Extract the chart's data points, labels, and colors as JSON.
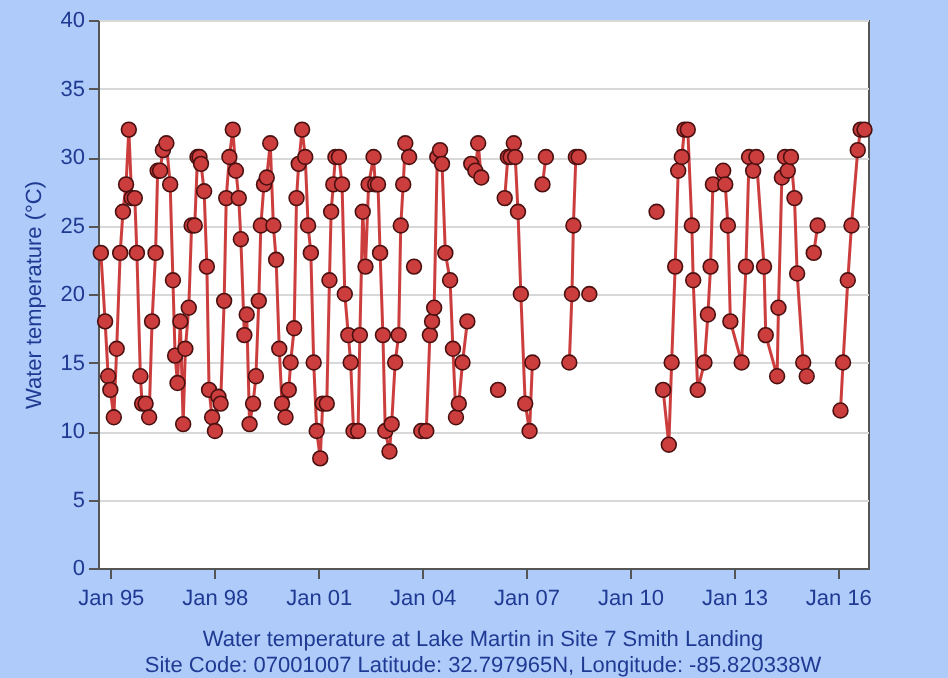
{
  "chart_data": {
    "type": "line",
    "title": "Water temperature at Lake Martin in Site 7 Smith Landing",
    "subtitle": "Site Code: 07001007 Latitude: 32.797965N, Longitude: -85.820338W",
    "ylabel": "Water temperature (°C)",
    "x": [
      "1994-09-23",
      "1994-11-07",
      "1994-12-09",
      "1995-01-01",
      "1995-02-07",
      "1995-03-09",
      "1995-04-15",
      "1995-05-14",
      "1995-06-16",
      "1995-07-15",
      "1995-08-14",
      "1995-09-16",
      "1995-10-08",
      "1995-11-14",
      "1995-12-02",
      "1996-01-08",
      "1996-02-14",
      "1996-03-16",
      "1996-04-22",
      "1996-05-14",
      "1996-06-09",
      "1996-07-08",
      "1996-08-14",
      "1996-09-23",
      "1996-10-22",
      "1996-11-14",
      "1996-12-09",
      "1997-01-08",
      "1997-02-07",
      "1997-03-02",
      "1997-04-07",
      "1997-05-07",
      "1997-06-09",
      "1997-07-08",
      "1997-07-29",
      "1997-08-14",
      "1997-09-16",
      "1997-10-15",
      "1997-11-07",
      "1997-12-09",
      "1998-01-08",
      "1998-02-14",
      "1998-03-09",
      "1998-04-15",
      "1998-05-07",
      "1998-06-09",
      "1998-07-15",
      "1998-08-17",
      "1998-09-16",
      "1998-10-08",
      "1998-11-14",
      "1998-12-09",
      "1999-01-08",
      "1999-02-14",
      "1999-03-16",
      "1999-04-15",
      "1999-05-07",
      "1999-06-09",
      "1999-07-08",
      "1999-08-14",
      "1999-09-16",
      "1999-10-15",
      "1999-11-17",
      "1999-12-16",
      "2000-01-22",
      "2000-02-25",
      "2000-03-16",
      "2000-04-22",
      "2000-05-17",
      "2000-06-09",
      "2000-07-15",
      "2000-08-17",
      "2000-09-16",
      "2000-10-15",
      "2000-11-14",
      "2000-12-16",
      "2001-01-22",
      "2001-02-17",
      "2001-04-01",
      "2001-04-29",
      "2001-05-17",
      "2001-06-09",
      "2001-07-01",
      "2001-08-07",
      "2001-09-09",
      "2001-10-08",
      "2001-11-14",
      "2001-12-09",
      "2002-01-08",
      "2002-02-25",
      "2002-03-16",
      "2002-04-15",
      "2002-05-14",
      "2002-06-16",
      "2002-08-07",
      "2002-08-25",
      "2002-09-23",
      "2002-10-15",
      "2002-11-14",
      "2002-12-09",
      "2003-01-22",
      "2003-02-14",
      "2003-03-23",
      "2003-04-29",
      "2003-05-21",
      "2003-06-16",
      "2003-07-08",
      "2003-08-17",
      "2003-09-13",
      "2003-10-08",
      "2003-11-14",
      "2003-12-23",
      "2004-02-14",
      "2004-03-23",
      "2004-04-15",
      "2004-05-07",
      "2004-06-09",
      "2004-07-08",
      "2004-07-29",
      "2004-09-02",
      "2004-10-22",
      "2004-11-21",
      "2004-12-23",
      "2005-01-22",
      "2005-03-02",
      "2005-04-22",
      "2005-05-10",
      "2005-06-02",
      "2005-07-15",
      "2005-08-14",
      "2005-09-16",
      "2005-11-24",
      "2006-03-12",
      "2006-04-18",
      "2006-05-21",
      "2006-06-23",
      "2006-07-22",
      "2006-08-25",
      "2006-09-09",
      "2006-10-08",
      "2006-11-07",
      "2006-12-23",
      "2007-02-07",
      "2007-03-09",
      "2007-04-18",
      "2007-06-23",
      "2007-07-29",
      "2007-11-24",
      "2008-04-01",
      "2008-04-29",
      "2008-05-14",
      "2008-06-09",
      "2008-07-08",
      "2008-09-13",
      "2008-10-29",
      "2009-10-19",
      "2010-10-08",
      "2010-11-24",
      "2010-12-16",
      "2011-02-14",
      "2011-03-16",
      "2011-04-22",
      "2011-05-24",
      "2011-07-01",
      "2011-07-29",
      "2011-09-02",
      "2011-10-15",
      "2011-10-29",
      "2011-12-16",
      "2012-02-25",
      "2012-04-01",
      "2012-04-29",
      "2012-05-24",
      "2012-09-09",
      "2012-10-01",
      "2012-10-29",
      "2012-11-24",
      "2013-03-23",
      "2013-05-07",
      "2013-06-09",
      "2013-07-22",
      "2013-08-25",
      "2013-11-14",
      "2013-12-02",
      "2014-04-01",
      "2014-04-15",
      "2014-05-21",
      "2014-06-23",
      "2014-07-22",
      "2014-08-25",
      "2014-10-01",
      "2014-10-29",
      "2015-01-01",
      "2015-02-07",
      "2015-03-13",
      "2015-04-22",
      "2015-06-02",
      "2015-09-13",
      "2016-01-29",
      "2016-02-25",
      "2016-04-15",
      "2016-05-24",
      "2016-07-29",
      "2016-08-28",
      "2016-10-08"
    ],
    "series": [
      {
        "color": "#cc3d3d",
        "values": [
          23,
          18,
          14,
          13,
          11,
          16,
          23,
          26,
          28,
          32,
          27,
          27,
          23,
          14,
          12,
          12,
          11,
          18,
          23,
          29,
          29,
          30.5,
          31,
          28,
          21,
          15.5,
          13.5,
          18,
          10.5,
          16,
          19,
          25,
          25,
          30,
          30,
          29.5,
          27.5,
          22,
          13,
          11,
          10,
          12.5,
          12,
          19.5,
          27,
          30,
          32,
          29,
          27,
          24,
          17,
          18.5,
          10.5,
          12,
          14,
          19.5,
          25,
          28,
          28.5,
          31,
          25,
          22.5,
          16,
          12,
          11,
          13,
          15,
          17.5,
          27,
          29.5,
          32,
          30,
          25,
          23,
          15,
          10,
          8,
          12,
          12,
          21,
          26,
          28,
          30,
          30,
          28,
          20,
          17,
          15,
          10,
          10,
          17,
          26,
          22,
          28,
          30,
          28,
          28,
          23,
          17,
          10,
          8.5,
          10.5,
          15,
          17,
          25,
          28,
          31,
          30,
          null,
          22,
          null,
          10,
          10,
          17,
          18,
          19,
          30,
          30.5,
          29.5,
          23,
          21,
          16,
          11,
          12,
          15,
          18,
          null,
          29.5,
          29,
          31,
          28.5,
          null,
          13,
          null,
          27,
          30,
          30,
          31,
          30,
          26,
          20,
          12,
          10,
          15,
          null,
          28,
          30,
          null,
          15,
          20,
          25,
          30,
          30,
          null,
          20,
          null,
          26,
          null,
          13,
          9,
          15,
          22,
          29,
          30,
          32,
          32,
          25,
          21,
          13,
          15,
          18.5,
          22,
          28,
          29,
          28,
          25,
          18,
          15,
          22,
          30,
          29,
          30,
          22,
          17,
          14,
          19,
          28.5,
          30,
          29,
          30,
          27,
          21.5,
          15,
          14,
          null,
          23,
          25,
          null,
          11.5,
          15,
          21,
          25,
          30.5,
          32,
          32
        ]
      }
    ],
    "xlim": [
      "1994-08-24",
      "2016-11-14"
    ],
    "xticks": [
      {
        "value": "1995-01-01",
        "label": "Jan 95"
      },
      {
        "value": "1998-01-01",
        "label": "Jan 98"
      },
      {
        "value": "2001-01-01",
        "label": "Jan 01"
      },
      {
        "value": "2004-01-01",
        "label": "Jan 04"
      },
      {
        "value": "2007-01-01",
        "label": "Jan 07"
      },
      {
        "value": "2010-01-01",
        "label": "Jan 10"
      },
      {
        "value": "2013-01-01",
        "label": "Jan 13"
      },
      {
        "value": "2016-01-01",
        "label": "Jan 16"
      }
    ],
    "ylim": [
      0,
      40
    ],
    "yticks": [
      0,
      5,
      10,
      15,
      20,
      25,
      30,
      35,
      40
    ],
    "grid": "y",
    "marker": "circle",
    "line_style": "solid"
  }
}
